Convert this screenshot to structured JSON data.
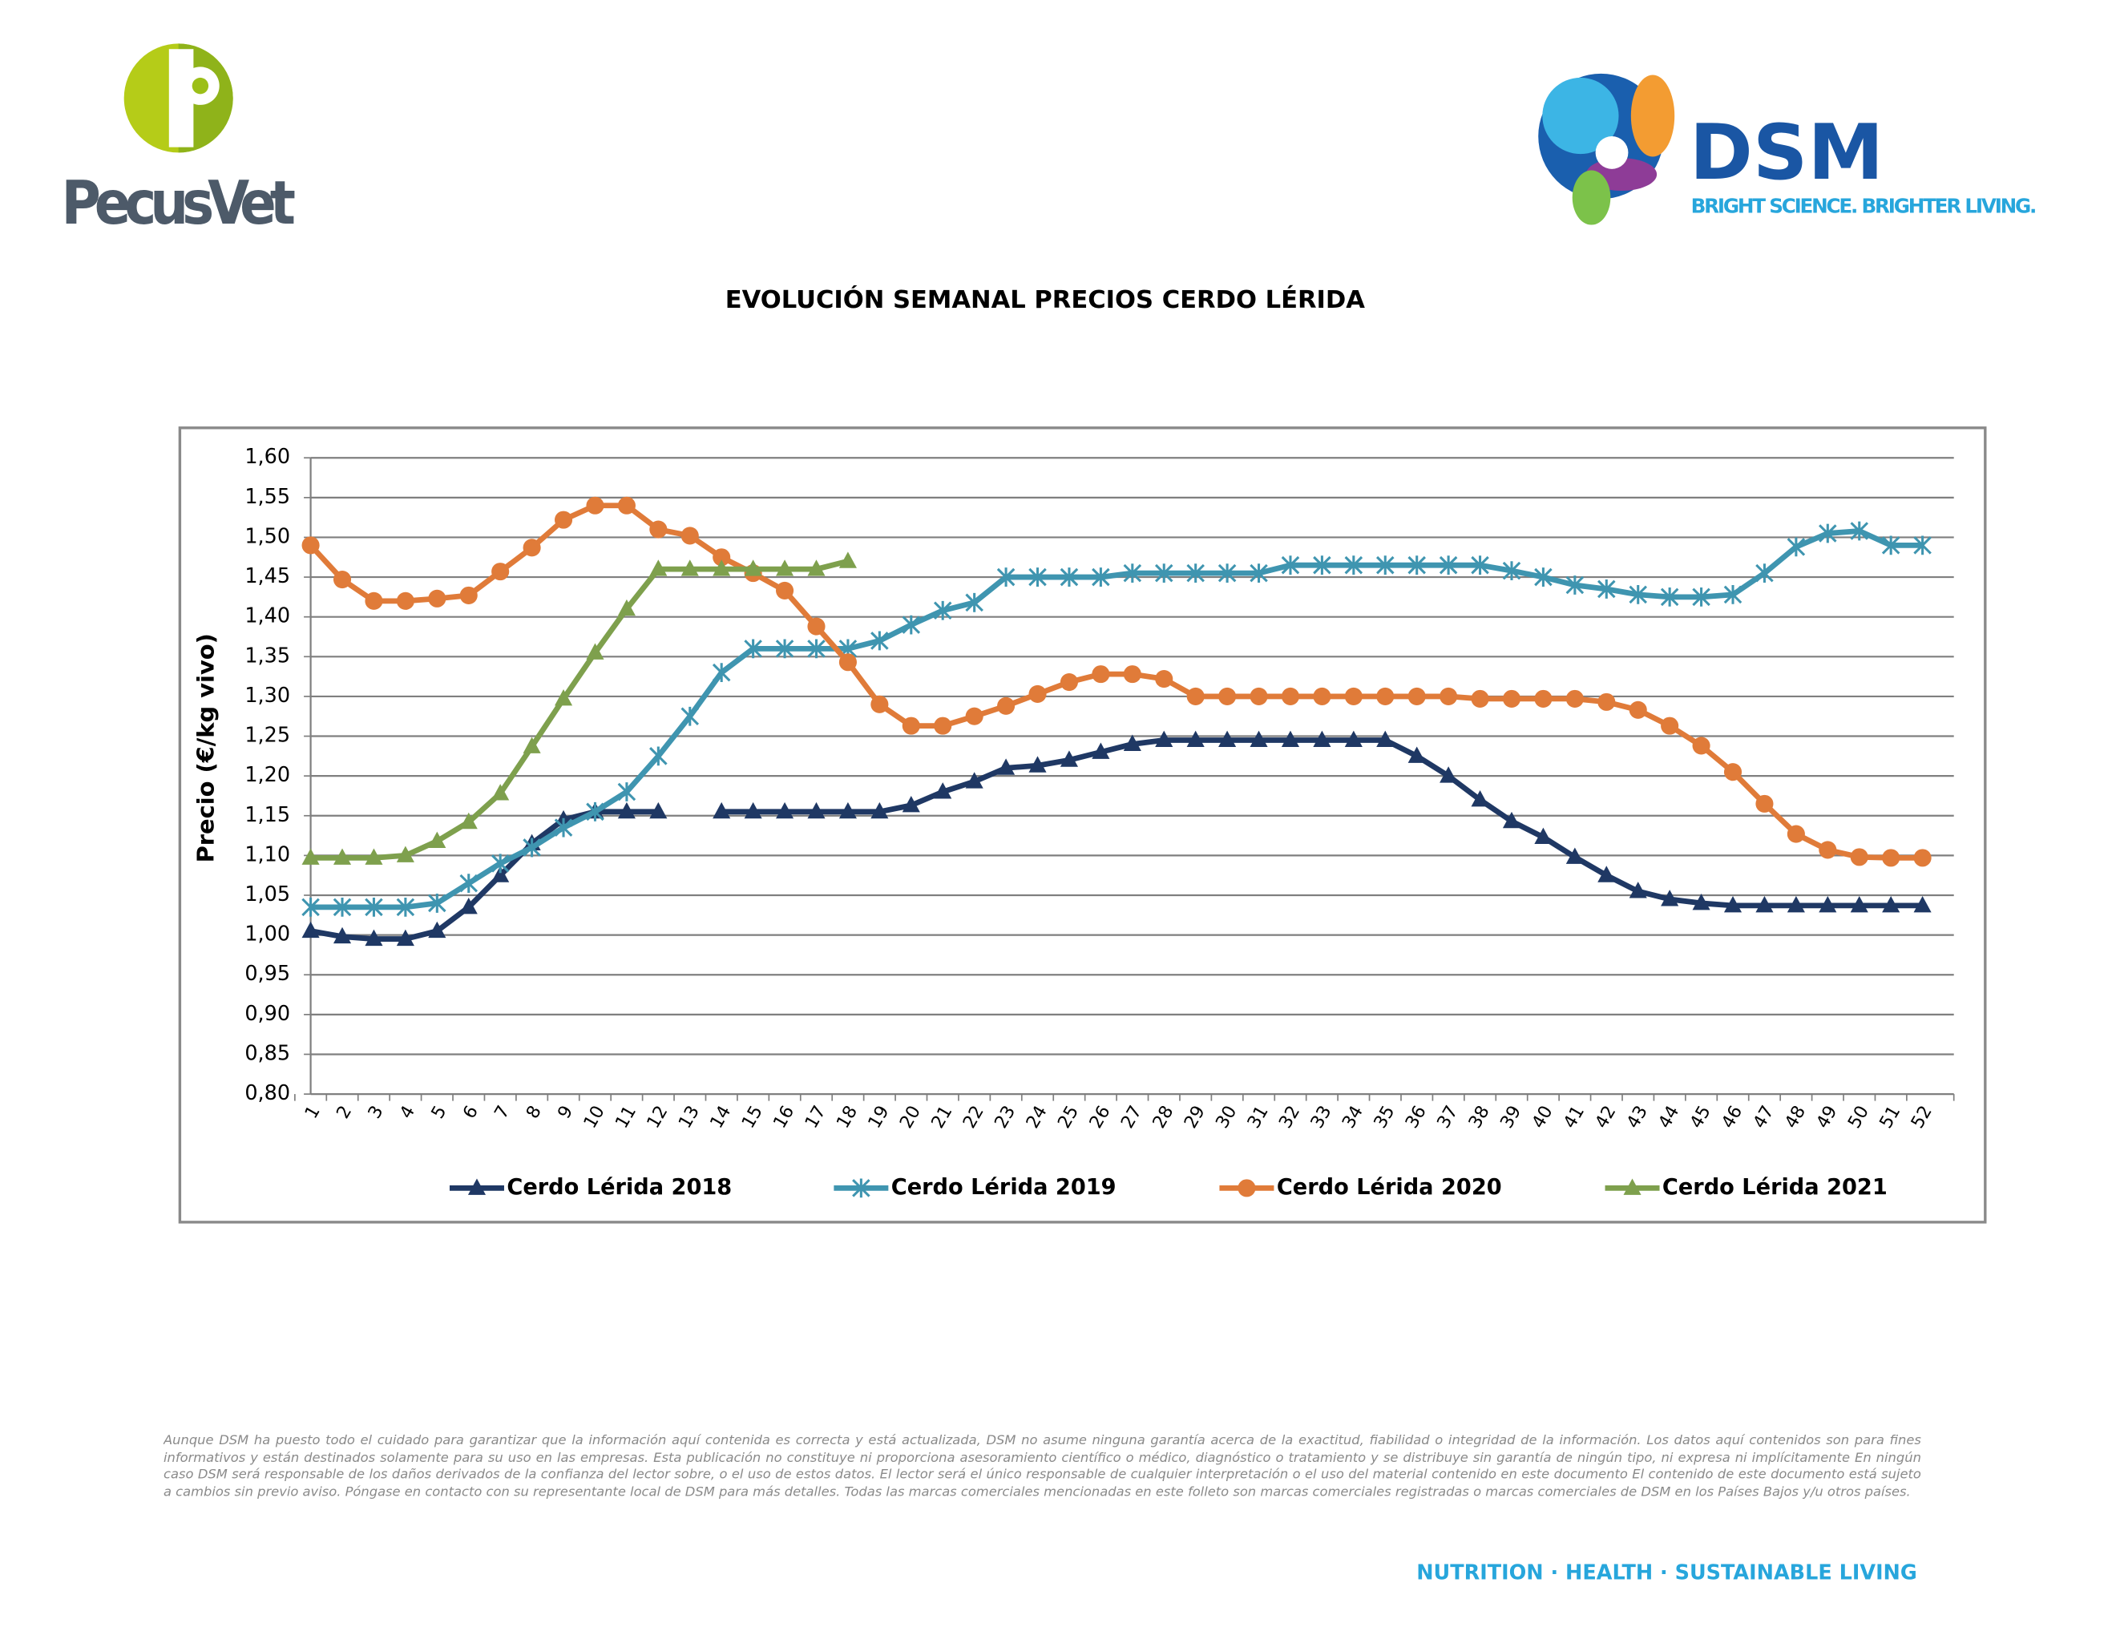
{
  "header": {
    "left_logo": "PecusVet",
    "right_logo": "DSM",
    "tagline": "BRIGHT SCIENCE. BRIGHTER LIVING."
  },
  "chart_data": {
    "type": "line",
    "title": "EVOLUCIÓN SEMANAL PRECIOS CERDO LÉRIDA",
    "y_label": "Precio (€/kg vivo)",
    "categories": [
      "1",
      "2",
      "3",
      "4",
      "5",
      "6",
      "7",
      "8",
      "9",
      "10",
      "11",
      "12",
      "13",
      "14",
      "15",
      "16",
      "17",
      "18",
      "19",
      "20",
      "21",
      "22",
      "23",
      "24",
      "25",
      "26",
      "27",
      "28",
      "29",
      "30",
      "31",
      "32",
      "33",
      "34",
      "35",
      "36",
      "37",
      "38",
      "39",
      "40",
      "41",
      "42",
      "43",
      "44",
      "45",
      "46",
      "47",
      "48",
      "49",
      "50",
      "51",
      "52"
    ],
    "series": [
      {
        "name": "Cerdo Lérida 2018",
        "color": "#1f3864",
        "marker": "triangle",
        "values": [
          1.005,
          0.998,
          0.995,
          0.995,
          1.005,
          1.035,
          1.075,
          1.115,
          1.145,
          1.155,
          1.155,
          1.155,
          null,
          1.155,
          1.155,
          1.155,
          1.155,
          1.155,
          1.155,
          1.163,
          1.18,
          1.193,
          1.21,
          1.213,
          1.22,
          1.23,
          1.24,
          1.245,
          1.245,
          1.245,
          1.245,
          1.245,
          1.245,
          1.245,
          1.245,
          1.225,
          1.2,
          1.17,
          1.143,
          1.123,
          1.098,
          1.075,
          1.055,
          1.045,
          1.04,
          1.037,
          1.037,
          1.037,
          1.037,
          1.037,
          1.037,
          1.037
        ]
      },
      {
        "name": "Cerdo Lérida 2019",
        "color": "#3f95b0",
        "marker": "asterisk",
        "values": [
          1.035,
          1.035,
          1.035,
          1.035,
          1.04,
          1.065,
          1.09,
          1.11,
          1.135,
          1.155,
          1.18,
          1.225,
          1.275,
          1.33,
          1.36,
          1.36,
          1.36,
          1.36,
          1.37,
          1.39,
          1.408,
          1.418,
          1.45,
          1.45,
          1.45,
          1.45,
          1.455,
          1.455,
          1.455,
          1.455,
          1.455,
          1.465,
          1.465,
          1.465,
          1.465,
          1.465,
          1.465,
          1.465,
          1.458,
          1.45,
          1.44,
          1.435,
          1.428,
          1.425,
          1.425,
          1.428,
          1.455,
          1.488,
          1.505,
          1.508,
          1.49,
          1.49
        ]
      },
      {
        "name": "Cerdo Lérida 2020",
        "color": "#e07b39",
        "marker": "circle",
        "values": [
          1.49,
          1.447,
          1.42,
          1.42,
          1.423,
          1.427,
          1.457,
          1.487,
          1.522,
          1.54,
          1.54,
          1.51,
          1.502,
          1.475,
          1.455,
          1.433,
          1.388,
          1.343,
          1.29,
          1.263,
          1.263,
          1.275,
          1.288,
          1.303,
          1.318,
          1.328,
          1.328,
          1.322,
          1.3,
          1.3,
          1.3,
          1.3,
          1.3,
          1.3,
          1.3,
          1.3,
          1.3,
          1.297,
          1.297,
          1.297,
          1.297,
          1.293,
          1.283,
          1.263,
          1.238,
          1.205,
          1.165,
          1.127,
          1.107,
          1.098,
          1.097,
          1.097
        ]
      },
      {
        "name": "Cerdo Lérida 2021",
        "color": "#7ea04d",
        "marker": "triangle",
        "values": [
          1.097,
          1.097,
          1.097,
          1.1,
          1.118,
          1.142,
          1.178,
          1.237,
          1.297,
          1.355,
          1.41,
          1.46,
          1.46,
          1.46,
          1.46,
          1.46,
          1.46,
          1.47,
          null,
          null,
          null,
          null,
          null,
          null,
          null,
          null,
          null,
          null,
          null,
          null,
          null,
          null,
          null,
          null,
          null,
          null,
          null,
          null,
          null,
          null,
          null,
          null,
          null,
          null,
          null,
          null,
          null,
          null,
          null,
          null,
          null,
          null
        ]
      }
    ],
    "ylim": [
      0.8,
      1.6
    ],
    "yticks": [
      {
        "value": 0.8,
        "label": "0,80"
      },
      {
        "value": 0.85,
        "label": "0,85"
      },
      {
        "value": 0.9,
        "label": "0,90"
      },
      {
        "value": 0.95,
        "label": "0,95"
      },
      {
        "value": 1.0,
        "label": "1,00"
      },
      {
        "value": 1.05,
        "label": "1,05"
      },
      {
        "value": 1.1,
        "label": "1,10"
      },
      {
        "value": 1.15,
        "label": "1,15"
      },
      {
        "value": 1.2,
        "label": "1,20"
      },
      {
        "value": 1.25,
        "label": "1,25"
      },
      {
        "value": 1.3,
        "label": "1,30"
      },
      {
        "value": 1.35,
        "label": "1,35"
      },
      {
        "value": 1.4,
        "label": "1,40"
      },
      {
        "value": 1.45,
        "label": "1,45"
      },
      {
        "value": 1.5,
        "label": "1,50"
      },
      {
        "value": 1.55,
        "label": "1,55"
      },
      {
        "value": 1.6,
        "label": "1,60"
      }
    ],
    "grid": true,
    "legend": "bottom"
  },
  "footer": {
    "disclaimer": "Aunque DSM ha puesto todo el cuidado para garantizar que la información aquí contenida es correcta y está actualizada, DSM no asume ninguna garantía acerca de la exactitud, fiabilidad o integridad de la información. Los datos aquí contenidos son para fines informativos y están destinados solamente para su uso en las empresas. Esta publicación no constituye ni proporciona asesoramiento científico o médico, diagnóstico o tratamiento y se distribuye sin garantía de ningún tipo, ni expresa ni implícitamente En ningún caso DSM será responsable de los daños derivados de la confianza del lector sobre, o el uso de estos datos. El lector será el único responsable de cualquier interpretación o el uso del material contenido en este documento El contenido de este documento está sujeto a cambios sin previo aviso. Póngase en contacto con su representante local de DSM para más detalles. Todas las marcas comerciales mencionadas en este folleto son marcas comerciales registradas o marcas comerciales de DSM en los Países Bajos y/u otros países.",
    "slogan": "NUTRITION · HEALTH · SUSTAINABLE LIVING"
  }
}
